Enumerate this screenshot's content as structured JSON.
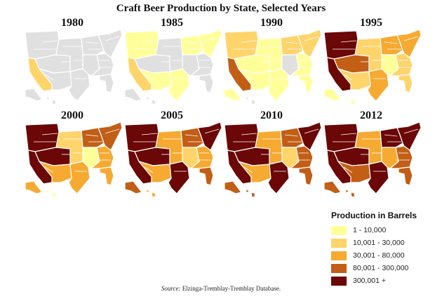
{
  "title": "Craft Beer Production by State, Selected Years",
  "colors": {
    "none": "#e0e0e0",
    "c1": "#ffff99",
    "c2": "#fed46b",
    "c3": "#f6aa31",
    "c4": "#c25e16",
    "c5": "#6b0707",
    "border": "#ffffff"
  },
  "legend": {
    "title": "Production in Barrels",
    "items": [
      {
        "label": "1 - 10,000",
        "key": "c1"
      },
      {
        "label": "10,001 - 30,000",
        "key": "c2"
      },
      {
        "label": "30,001 - 80,000",
        "key": "c3"
      },
      {
        "label": "80,001 - 300,000",
        "key": "c4"
      },
      {
        "label": "300,001 +",
        "key": "c5"
      }
    ]
  },
  "panels": [
    {
      "year": "1980",
      "regions": {
        "northwest": "none",
        "california": "c2",
        "mountain": "none",
        "southwest": "none",
        "plains": "none",
        "texas": "none",
        "great_lakes": "none",
        "mississippi": "none",
        "south": "none",
        "northeast": "none",
        "florida": "none",
        "alaska": "none",
        "hawaii": "none"
      }
    },
    {
      "year": "1985",
      "regions": {
        "northwest": "c1",
        "california": "c2",
        "mountain": "none",
        "southwest": "c1",
        "plains": "none",
        "texas": "c1",
        "great_lakes": "c1",
        "mississippi": "none",
        "south": "none",
        "northeast": "c1",
        "florida": "none",
        "alaska": "none",
        "hawaii": "none"
      }
    },
    {
      "year": "1990",
      "regions": {
        "northwest": "c2",
        "california": "c4",
        "mountain": "c1",
        "southwest": "c1",
        "plains": "c1",
        "texas": "c1",
        "great_lakes": "c2",
        "mississippi": "none",
        "south": "c1",
        "northeast": "c2",
        "florida": "c1",
        "alaska": "c1",
        "hawaii": "none"
      }
    },
    {
      "year": "1995",
      "regions": {
        "northwest": "c5",
        "california": "c5",
        "mountain": "c4",
        "southwest": "c2",
        "plains": "c2",
        "texas": "c3",
        "great_lakes": "c3",
        "mississippi": "c1",
        "south": "c2",
        "northeast": "c3",
        "florida": "c2",
        "alaska": "c1",
        "hawaii": "c1"
      }
    },
    {
      "year": "2000",
      "regions": {
        "northwest": "c5",
        "california": "c5",
        "mountain": "c5",
        "southwest": "c3",
        "plains": "c2",
        "texas": "c3",
        "great_lakes": "c4",
        "mississippi": "c1",
        "south": "c3",
        "northeast": "c4",
        "florida": "c3",
        "alaska": "c3",
        "hawaii": "c1"
      }
    },
    {
      "year": "2005",
      "regions": {
        "northwest": "c5",
        "california": "c5",
        "mountain": "c5",
        "southwest": "c3",
        "plains": "c3",
        "texas": "c5",
        "great_lakes": "c4",
        "mississippi": "c2",
        "south": "c3",
        "northeast": "c5",
        "florida": "c4",
        "alaska": "c4",
        "hawaii": "c3"
      }
    },
    {
      "year": "2010",
      "regions": {
        "northwest": "c5",
        "california": "c5",
        "mountain": "c5",
        "southwest": "c3",
        "plains": "c3",
        "texas": "c5",
        "great_lakes": "c4",
        "mississippi": "c2",
        "south": "c4",
        "northeast": "c5",
        "florida": "c4",
        "alaska": "c4",
        "hawaii": "c4"
      }
    },
    {
      "year": "2012",
      "regions": {
        "northwest": "c5",
        "california": "c5",
        "mountain": "c5",
        "southwest": "c4",
        "plains": "c3",
        "texas": "c5",
        "great_lakes": "c5",
        "mississippi": "c3",
        "south": "c4",
        "northeast": "c5",
        "florida": "c4",
        "alaska": "c4",
        "hawaii": "c4"
      }
    }
  ],
  "source": {
    "label": "Source:",
    "text": "Elzinga-Tremblay-Tremblay Database."
  }
}
